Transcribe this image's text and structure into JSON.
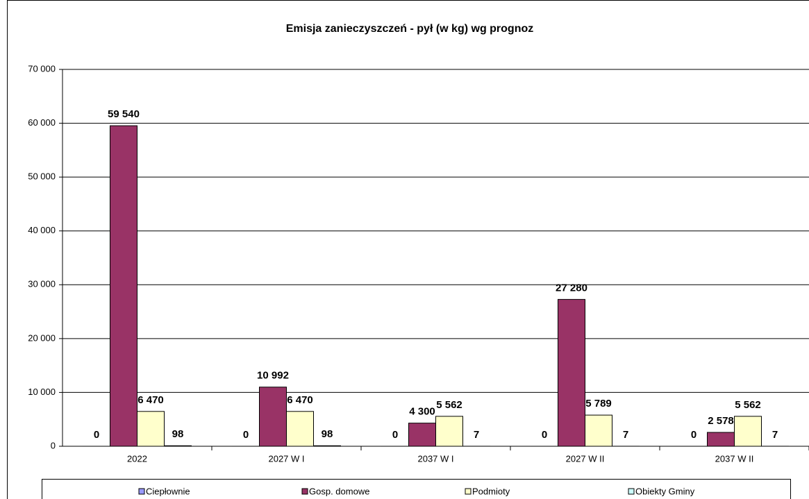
{
  "chart_data": {
    "type": "bar",
    "title": "Emisja zanieczyszczeń -  pył (w kg) wg prognoz",
    "categories": [
      "2022",
      "2027 W I",
      "2037 W I",
      "2027 W II",
      "2037 W II"
    ],
    "series": [
      {
        "name": "Ciepłownie",
        "color": "#9999ff",
        "values": [
          0,
          0,
          0,
          0,
          0
        ],
        "value_labels": [
          "0",
          "0",
          "0",
          "0",
          "0"
        ]
      },
      {
        "name": "Gosp. domowe",
        "color": "#993366",
        "values": [
          59540,
          10992,
          4300,
          27280,
          2578
        ],
        "value_labels": [
          "59 540",
          "10 992",
          "4 300",
          "27 280",
          "2 578"
        ]
      },
      {
        "name": "Podmioty",
        "color": "#ffffcc",
        "values": [
          6470,
          6470,
          5562,
          5789,
          5562
        ],
        "value_labels": [
          "6 470",
          "6 470",
          "5 562",
          "5 789",
          "5 562"
        ]
      },
      {
        "name": "Obiekty Gminy",
        "color": "#ccffff",
        "values": [
          98,
          98,
          7,
          7,
          7
        ],
        "value_labels": [
          "98",
          "98",
          "7",
          "7",
          "7"
        ]
      }
    ],
    "ylim": [
      0,
      70000
    ],
    "yticks": [
      0,
      {
        "value": 10000,
        "label": "10 000"
      },
      {
        "value": 20000,
        "label": "20 000"
      },
      {
        "value": 30000,
        "label": "30 000"
      },
      {
        "value": 40000,
        "label": "40 000"
      },
      {
        "value": 50000,
        "label": "50 000"
      },
      {
        "value": 60000,
        "label": "60 000"
      },
      {
        "value": 70000,
        "label": "70 000"
      }
    ],
    "grid": true,
    "legend": "bottom"
  }
}
